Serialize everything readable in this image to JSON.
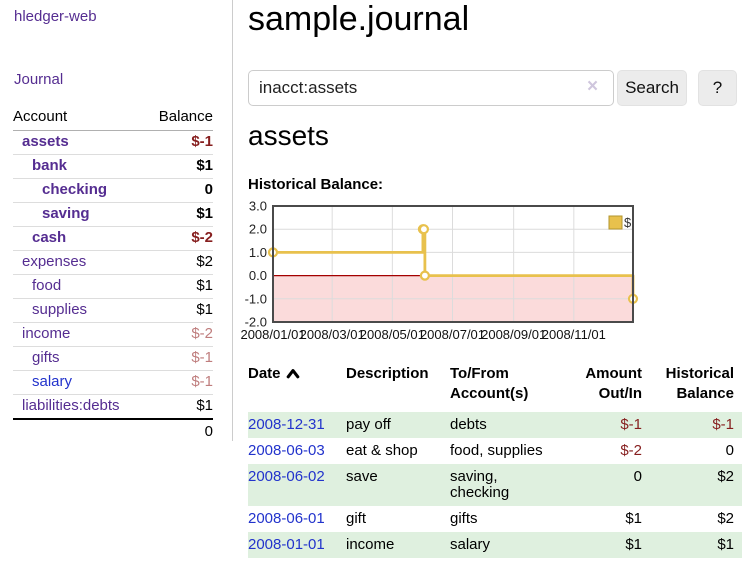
{
  "brand": "hledger-web",
  "nav": {
    "journal": "Journal"
  },
  "sidebar": {
    "account_header": "Account",
    "balance_header": "Balance",
    "rows": [
      {
        "name": "assets",
        "balance": "$-1",
        "indent": 1,
        "bold": true,
        "tone": "neg",
        "link": "purple"
      },
      {
        "name": "bank",
        "balance": "$1",
        "indent": 2,
        "bold": true,
        "tone": "pos",
        "link": "purple"
      },
      {
        "name": "checking",
        "balance": "0",
        "indent": 3,
        "bold": true,
        "tone": "pos",
        "link": "purple"
      },
      {
        "name": "saving",
        "balance": "$1",
        "indent": 3,
        "bold": true,
        "tone": "pos",
        "link": "purple"
      },
      {
        "name": "cash",
        "balance": "$-2",
        "indent": 2,
        "bold": true,
        "tone": "neg",
        "link": "purple"
      },
      {
        "name": "expenses",
        "balance": "$2",
        "indent": 1,
        "bold": false,
        "tone": "pos",
        "link": "purple"
      },
      {
        "name": "food",
        "balance": "$1",
        "indent": 2,
        "bold": false,
        "tone": "pos",
        "link": "purple"
      },
      {
        "name": "supplies",
        "balance": "$1",
        "indent": 2,
        "bold": false,
        "tone": "pos",
        "link": "purple"
      },
      {
        "name": "income",
        "balance": "$-2",
        "indent": 1,
        "bold": false,
        "tone": "neg-soft",
        "link": "purple"
      },
      {
        "name": "gifts",
        "balance": "$-1",
        "indent": 2,
        "bold": false,
        "tone": "neg-soft",
        "link": "purple"
      },
      {
        "name": "salary",
        "balance": "$-1",
        "indent": 2,
        "bold": false,
        "tone": "neg-soft",
        "link": "blue"
      },
      {
        "name": "liabilities:debts",
        "balance": "$1",
        "indent": 1,
        "bold": false,
        "tone": "pos",
        "link": "purple"
      }
    ],
    "total": "0"
  },
  "page": {
    "title": "sample.journal",
    "account_heading": "assets",
    "chart_label": "Historical Balance:"
  },
  "search": {
    "value": "inacct:assets",
    "clear_label": "×",
    "button_label": "Search",
    "help_label": "?"
  },
  "chart_data": {
    "type": "line",
    "step": true,
    "title": "Historical Balance",
    "x": [
      "2008-01-01",
      "2008-06-01",
      "2008-06-02",
      "2008-06-03",
      "2008-12-31"
    ],
    "series": [
      {
        "name": "$",
        "values": [
          1,
          2,
          2,
          0,
          -1
        ]
      }
    ],
    "x_domain": [
      "2008-01-01",
      "2008-12-31"
    ],
    "ylim": [
      -2,
      3
    ],
    "ytick_values": [
      3,
      2,
      1,
      0,
      -1,
      -2
    ],
    "ytick_labels": [
      "3.0",
      "2.0",
      "1.0",
      "0.0",
      "-1.0",
      "-2.0"
    ],
    "xtick_dates": [
      "2008-01-01",
      "2008-03-01",
      "2008-05-01",
      "2008-07-01",
      "2008-09-01",
      "2008-11-01"
    ],
    "xtick_labels": [
      "2008/01/01",
      "2008/03/01",
      "2008/05/01",
      "2008/07/01",
      "2008/09/01",
      "2008/11/01"
    ],
    "grid": true,
    "legend": {
      "label": "$",
      "position": "top-right"
    },
    "marker": "open-circle"
  },
  "register": {
    "headers": {
      "date": "Date",
      "description": "Description",
      "account_line1": "To/From",
      "account_line2": "Account(s)",
      "amount_line1": "Amount",
      "amount_line2": "Out/In",
      "balance_line1": "Historical",
      "balance_line2": "Balance"
    },
    "rows": [
      {
        "date": "2008-12-31",
        "description": "pay off",
        "accounts": "debts",
        "amount": "$-1",
        "amount_tone": "neg",
        "balance": "$-1",
        "balance_tone": "neg"
      },
      {
        "date": "2008-06-03",
        "description": "eat & shop",
        "accounts": "food, supplies",
        "amount": "$-2",
        "amount_tone": "neg",
        "balance": "0",
        "balance_tone": "pos"
      },
      {
        "date": "2008-06-02",
        "description": "save",
        "accounts": "saving, checking",
        "amount": "0",
        "amount_tone": "pos",
        "balance": "$2",
        "balance_tone": "pos"
      },
      {
        "date": "2008-06-01",
        "description": "gift",
        "accounts": "gifts",
        "amount": "$1",
        "amount_tone": "pos",
        "balance": "$2",
        "balance_tone": "pos"
      },
      {
        "date": "2008-01-01",
        "description": "income",
        "accounts": "salary",
        "amount": "$1",
        "amount_tone": "pos",
        "balance": "$1",
        "balance_tone": "pos"
      }
    ]
  },
  "colors": {
    "link_purple": "#552d91",
    "link_blue": "#2233cc",
    "negative_strong": "#861e1e",
    "negative_soft": "#bf7d7d",
    "row_stripe_green": "#dff0df",
    "chart_line": "#e8c14d",
    "chart_line_border": "#b2952e",
    "chart_negative_band": "#fbdbdb",
    "chart_zero_line": "#a40000",
    "chart_grid": "#dcdcdc",
    "chart_border": "#4a4a4a"
  }
}
